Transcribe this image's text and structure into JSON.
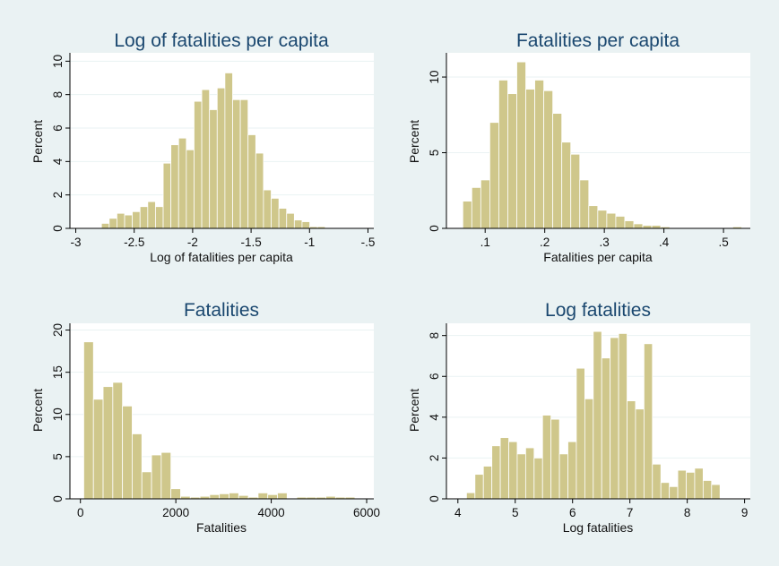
{
  "figure": {
    "background": "#eaf2f3",
    "bar_color": "#cfc78b",
    "title_color": "#1a476f"
  },
  "chart_data": [
    {
      "type": "bar",
      "title": "Log of fatalities per capita",
      "xlabel": "Log of fatalities per capita",
      "ylabel": "Percent",
      "xlim": [
        -3.05,
        -0.45
      ],
      "ylim": [
        0,
        10.5
      ],
      "xticks": [
        -3,
        -2.5,
        -2,
        -1.5,
        -1,
        -0.5
      ],
      "xtick_labels": [
        "-3",
        "-2.5",
        "-2",
        "-1.5",
        "-1",
        "-.5"
      ],
      "yticks": [
        0,
        2,
        4,
        6,
        8,
        10
      ],
      "bin_start": -2.78,
      "bin_width": 0.066,
      "values": [
        0.3,
        0.6,
        0.9,
        0.8,
        1.0,
        1.3,
        1.6,
        1.3,
        3.9,
        5.0,
        5.4,
        4.7,
        7.6,
        8.3,
        7.1,
        8.4,
        9.3,
        7.7,
        7.7,
        5.6,
        4.5,
        2.3,
        1.8,
        1.2,
        0.9,
        0.5,
        0.4,
        0.1,
        0.1
      ]
    },
    {
      "type": "bar",
      "title": "Fatalities per capita",
      "xlabel": "Fatalities per capita",
      "ylabel": "Percent",
      "xlim": [
        0.035,
        0.545
      ],
      "ylim": [
        0,
        11.6
      ],
      "xticks": [
        0.1,
        0.2,
        0.3,
        0.4,
        0.5
      ],
      "xtick_labels": [
        ".1",
        ".2",
        ".3",
        ".4",
        ".5"
      ],
      "yticks": [
        0,
        5,
        10
      ],
      "bin_start": 0.0625,
      "bin_width": 0.0151,
      "values": [
        1.8,
        2.7,
        3.2,
        7.0,
        9.8,
        8.9,
        11.0,
        9.2,
        9.8,
        9.1,
        7.6,
        5.7,
        4.9,
        3.2,
        1.5,
        1.2,
        1.0,
        0.8,
        0.5,
        0.3,
        0.2,
        0.2,
        0.1,
        0.0,
        0.0,
        0.0,
        0.0,
        0.0,
        0.0,
        0.0,
        0.1
      ]
    },
    {
      "type": "bar",
      "title": "Fatalities",
      "xlabel": "Fatalities",
      "ylabel": "Percent",
      "xlim": [
        -220,
        6150
      ],
      "ylim": [
        0,
        20.8
      ],
      "xticks": [
        0,
        2000,
        4000,
        6000
      ],
      "xtick_labels": [
        "0",
        "2000",
        "4000",
        "6000"
      ],
      "yticks": [
        0,
        5,
        10,
        15,
        20
      ],
      "bin_start": 70,
      "bin_width": 203,
      "values": [
        18.6,
        11.8,
        13.3,
        13.8,
        11.0,
        7.7,
        3.2,
        5.2,
        5.5,
        1.2,
        0.3,
        0.2,
        0.3,
        0.5,
        0.6,
        0.7,
        0.4,
        0.2,
        0.7,
        0.5,
        0.7,
        0.0,
        0.2,
        0.2,
        0.2,
        0.3,
        0.2,
        0.2
      ]
    },
    {
      "type": "bar",
      "title": "Log fatalities",
      "xlabel": "Log fatalities",
      "ylabel": "Percent",
      "xlim": [
        3.8,
        9.1
      ],
      "ylim": [
        0,
        8.6
      ],
      "xticks": [
        4,
        5,
        6,
        7,
        8,
        9
      ],
      "xtick_labels": [
        "4",
        "5",
        "6",
        "7",
        "8",
        "9"
      ],
      "yticks": [
        0,
        2,
        4,
        6,
        8
      ],
      "bin_start": 4.15,
      "bin_width": 0.1474,
      "values": [
        0.3,
        1.2,
        1.6,
        2.6,
        3.0,
        2.8,
        2.2,
        2.5,
        2.0,
        4.1,
        3.9,
        2.2,
        2.8,
        6.4,
        4.9,
        8.2,
        6.9,
        7.9,
        8.1,
        4.8,
        4.4,
        7.6,
        1.7,
        0.8,
        0.6,
        1.4,
        1.3,
        1.5,
        0.9,
        0.7
      ]
    }
  ]
}
